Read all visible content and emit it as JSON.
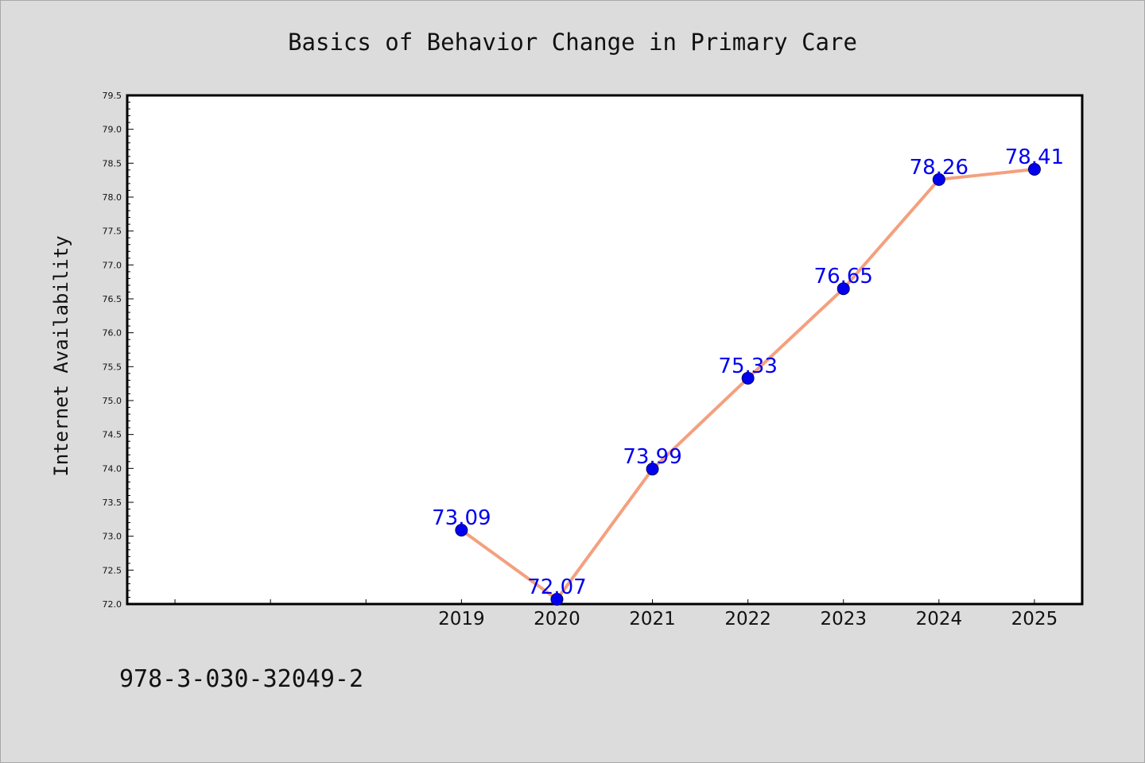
{
  "chart_data": {
    "type": "line",
    "title": "Basics of Behavior Change in Primary Care",
    "xlabel": "",
    "ylabel": "Internet Availability",
    "x": [
      "2019",
      "2020",
      "2021",
      "2022",
      "2023",
      "2024",
      "2025"
    ],
    "series": [
      {
        "values": [
          73.09,
          72.07,
          73.99,
          75.33,
          76.65,
          78.26,
          78.41
        ],
        "labels": [
          "73.09",
          "72.07",
          "73.99",
          "75.33",
          "76.65",
          "78.26",
          "78.41"
        ]
      }
    ],
    "ylim": [
      72.0,
      79.5
    ],
    "xlim": [
      2015.5,
      2025.5
    ],
    "yticks": [
      "72.0",
      "72.5",
      "73.0",
      "73.5",
      "74.0",
      "74.5",
      "75.0",
      "75.5",
      "76.0",
      "76.5",
      "77.0",
      "77.5",
      "78.0",
      "78.5",
      "79.0",
      "79.5"
    ],
    "grid": false,
    "legend": "none",
    "colors": {
      "line": "#f4a07e",
      "marker": "#0000ee",
      "data_label": "#0000ee",
      "page_background": "#dcdcdc",
      "plot_background": "#ffffff"
    }
  },
  "footer": {
    "isbn": "978-3-030-32049-2"
  }
}
